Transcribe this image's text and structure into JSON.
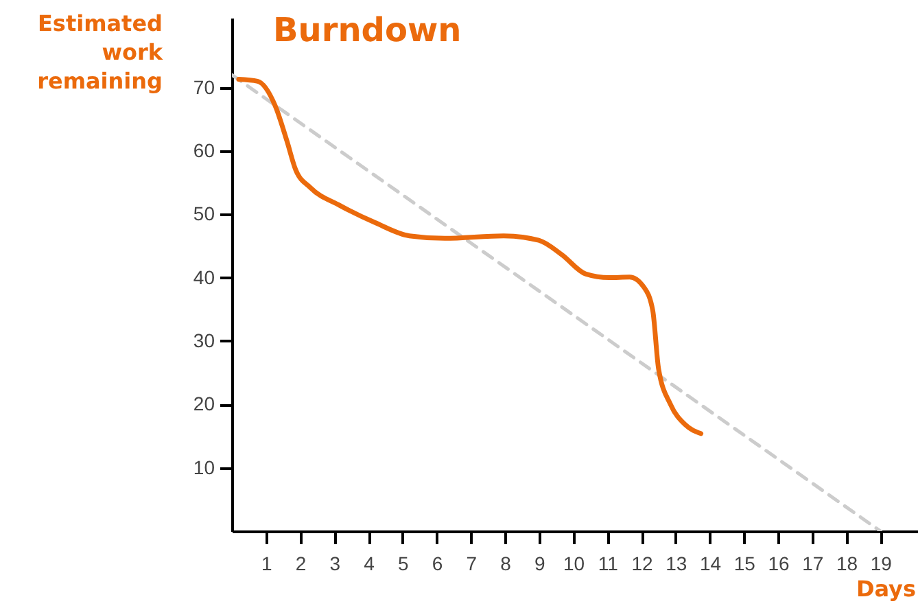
{
  "chart_data": {
    "type": "line",
    "title": "Burndown",
    "xlabel": "Days",
    "ylabel": "Estimated work remaining",
    "xlim": [
      0,
      20.1
    ],
    "ylim": [
      0,
      81
    ],
    "xticks": [
      1,
      2,
      3,
      4,
      5,
      6,
      7,
      8,
      9,
      10,
      11,
      12,
      13,
      14,
      15,
      16,
      17,
      18,
      19
    ],
    "yticks": [
      10,
      20,
      30,
      40,
      50,
      60,
      70
    ],
    "grid": false,
    "marker": "none",
    "series": [
      {
        "color": "#eb6a0c",
        "line_style": "solid",
        "x": [
          0.2,
          0.75,
          1.27,
          1.61,
          1.87,
          2.3,
          3.16,
          4.19,
          5.2,
          6.24,
          7.96,
          8.99,
          9.67,
          10.36,
          11.05,
          11.65,
          12.07,
          12.33,
          12.5,
          12.85,
          13.28,
          13.74
        ],
        "values": [
          71.3,
          71,
          67.1,
          61.6,
          57,
          54.2,
          51.4,
          48.7,
          46.6,
          46.2,
          46.6,
          45.9,
          43.6,
          40.6,
          40,
          40.1,
          38.5,
          34.8,
          25.6,
          20,
          16.8,
          15.4
        ]
      },
      {
        "color": "#cccccc",
        "line_style": "dashed",
        "x": [
          0,
          19
        ],
        "values": [
          72,
          0
        ]
      }
    ]
  }
}
